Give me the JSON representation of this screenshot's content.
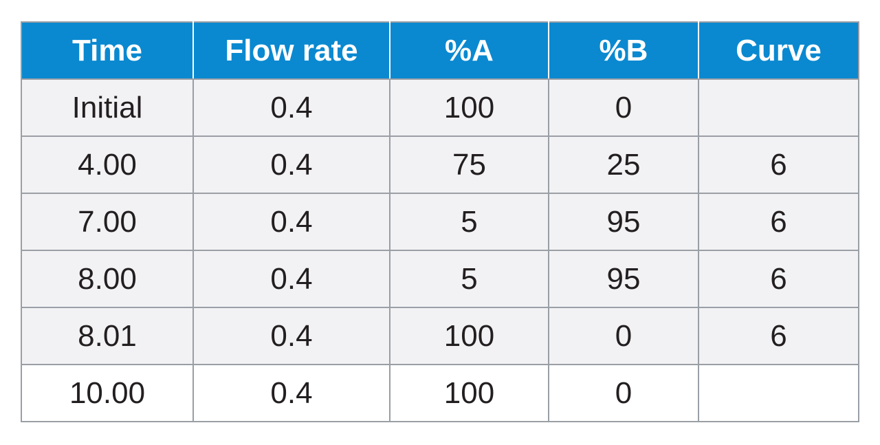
{
  "table": {
    "headers": [
      "Time",
      "Flow rate",
      "%A",
      "%B",
      "Curve"
    ],
    "rows": [
      [
        "Initial",
        "0.4",
        "100",
        "0",
        ""
      ],
      [
        "4.00",
        "0.4",
        "75",
        "25",
        "6"
      ],
      [
        "7.00",
        "0.4",
        "5",
        "95",
        "6"
      ],
      [
        "8.00",
        "0.4",
        "5",
        "95",
        "6"
      ],
      [
        "8.01",
        "0.4",
        "100",
        "0",
        "6"
      ],
      [
        "10.00",
        "0.4",
        "100",
        "0",
        ""
      ]
    ]
  },
  "colors": {
    "header_background": "#0a89d0",
    "header_text": "#ffffff",
    "row_background": "#f2f2f4",
    "last_row_background": "#ffffff",
    "grid_lines": "#9a9ea5",
    "cell_text": "#231f20"
  }
}
